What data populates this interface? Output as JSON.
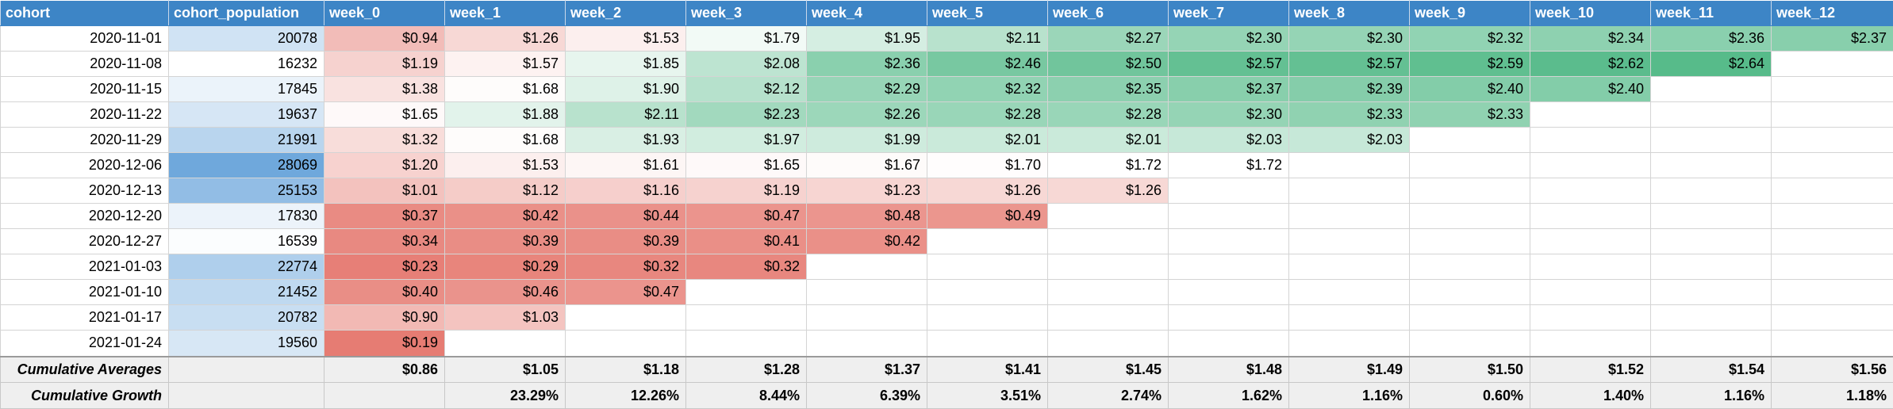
{
  "headers": [
    "cohort",
    "cohort_population",
    "week_0",
    "week_1",
    "week_2",
    "week_3",
    "week_4",
    "week_5",
    "week_6",
    "week_7",
    "week_8",
    "week_9",
    "week_10",
    "week_11",
    "week_12"
  ],
  "rows": [
    {
      "cohort": "2020-11-01",
      "population": "20078",
      "weeks": [
        "$0.94",
        "$1.26",
        "$1.53",
        "$1.79",
        "$1.95",
        "$2.11",
        "$2.27",
        "$2.30",
        "$2.30",
        "$2.32",
        "$2.34",
        "$2.36",
        "$2.37"
      ]
    },
    {
      "cohort": "2020-11-08",
      "population": "16232",
      "weeks": [
        "$1.19",
        "$1.57",
        "$1.85",
        "$2.08",
        "$2.36",
        "$2.46",
        "$2.50",
        "$2.57",
        "$2.57",
        "$2.59",
        "$2.62",
        "$2.64"
      ]
    },
    {
      "cohort": "2020-11-15",
      "population": "17845",
      "weeks": [
        "$1.38",
        "$1.68",
        "$1.90",
        "$2.12",
        "$2.29",
        "$2.32",
        "$2.35",
        "$2.37",
        "$2.39",
        "$2.40",
        "$2.40"
      ]
    },
    {
      "cohort": "2020-11-22",
      "population": "19637",
      "weeks": [
        "$1.65",
        "$1.88",
        "$2.11",
        "$2.23",
        "$2.26",
        "$2.28",
        "$2.28",
        "$2.30",
        "$2.33",
        "$2.33"
      ]
    },
    {
      "cohort": "2020-11-29",
      "population": "21991",
      "weeks": [
        "$1.32",
        "$1.68",
        "$1.93",
        "$1.97",
        "$1.99",
        "$2.01",
        "$2.01",
        "$2.03",
        "$2.03"
      ]
    },
    {
      "cohort": "2020-12-06",
      "population": "28069",
      "weeks": [
        "$1.20",
        "$1.53",
        "$1.61",
        "$1.65",
        "$1.67",
        "$1.70",
        "$1.72",
        "$1.72"
      ]
    },
    {
      "cohort": "2020-12-13",
      "population": "25153",
      "weeks": [
        "$1.01",
        "$1.12",
        "$1.16",
        "$1.19",
        "$1.23",
        "$1.26",
        "$1.26"
      ]
    },
    {
      "cohort": "2020-12-20",
      "population": "17830",
      "weeks": [
        "$0.37",
        "$0.42",
        "$0.44",
        "$0.47",
        "$0.48",
        "$0.49"
      ]
    },
    {
      "cohort": "2020-12-27",
      "population": "16539",
      "weeks": [
        "$0.34",
        "$0.39",
        "$0.39",
        "$0.41",
        "$0.42"
      ]
    },
    {
      "cohort": "2021-01-03",
      "population": "22774",
      "weeks": [
        "$0.23",
        "$0.29",
        "$0.32",
        "$0.32"
      ]
    },
    {
      "cohort": "2021-01-10",
      "population": "21452",
      "weeks": [
        "$0.40",
        "$0.46",
        "$0.47"
      ]
    },
    {
      "cohort": "2021-01-17",
      "population": "20782",
      "weeks": [
        "$0.90",
        "$1.03"
      ]
    },
    {
      "cohort": "2021-01-24",
      "population": "19560",
      "weeks": [
        "$0.19"
      ]
    }
  ],
  "averages": {
    "label": "Cumulative Averages",
    "values": [
      "$0.86",
      "$1.05",
      "$1.18",
      "$1.28",
      "$1.37",
      "$1.41",
      "$1.45",
      "$1.48",
      "$1.49",
      "$1.50",
      "$1.52",
      "$1.54",
      "$1.56"
    ]
  },
  "growth": {
    "label": "Cumulative Growth",
    "values": [
      "",
      "23.29%",
      "12.26%",
      "8.44%",
      "6.39%",
      "3.51%",
      "2.74%",
      "1.62%",
      "1.16%",
      "0.60%",
      "1.40%",
      "1.16%",
      "1.18%"
    ]
  },
  "colors": {
    "header_bg": "#3d85c6",
    "header_text": "#ffffff",
    "heat_low": "#e67c73",
    "heat_mid": "#ffffff",
    "heat_high": "#57bb8a",
    "population_low": "#ffffff",
    "population_high": "#6fa8dc",
    "footer_bg": "#efefef"
  }
}
